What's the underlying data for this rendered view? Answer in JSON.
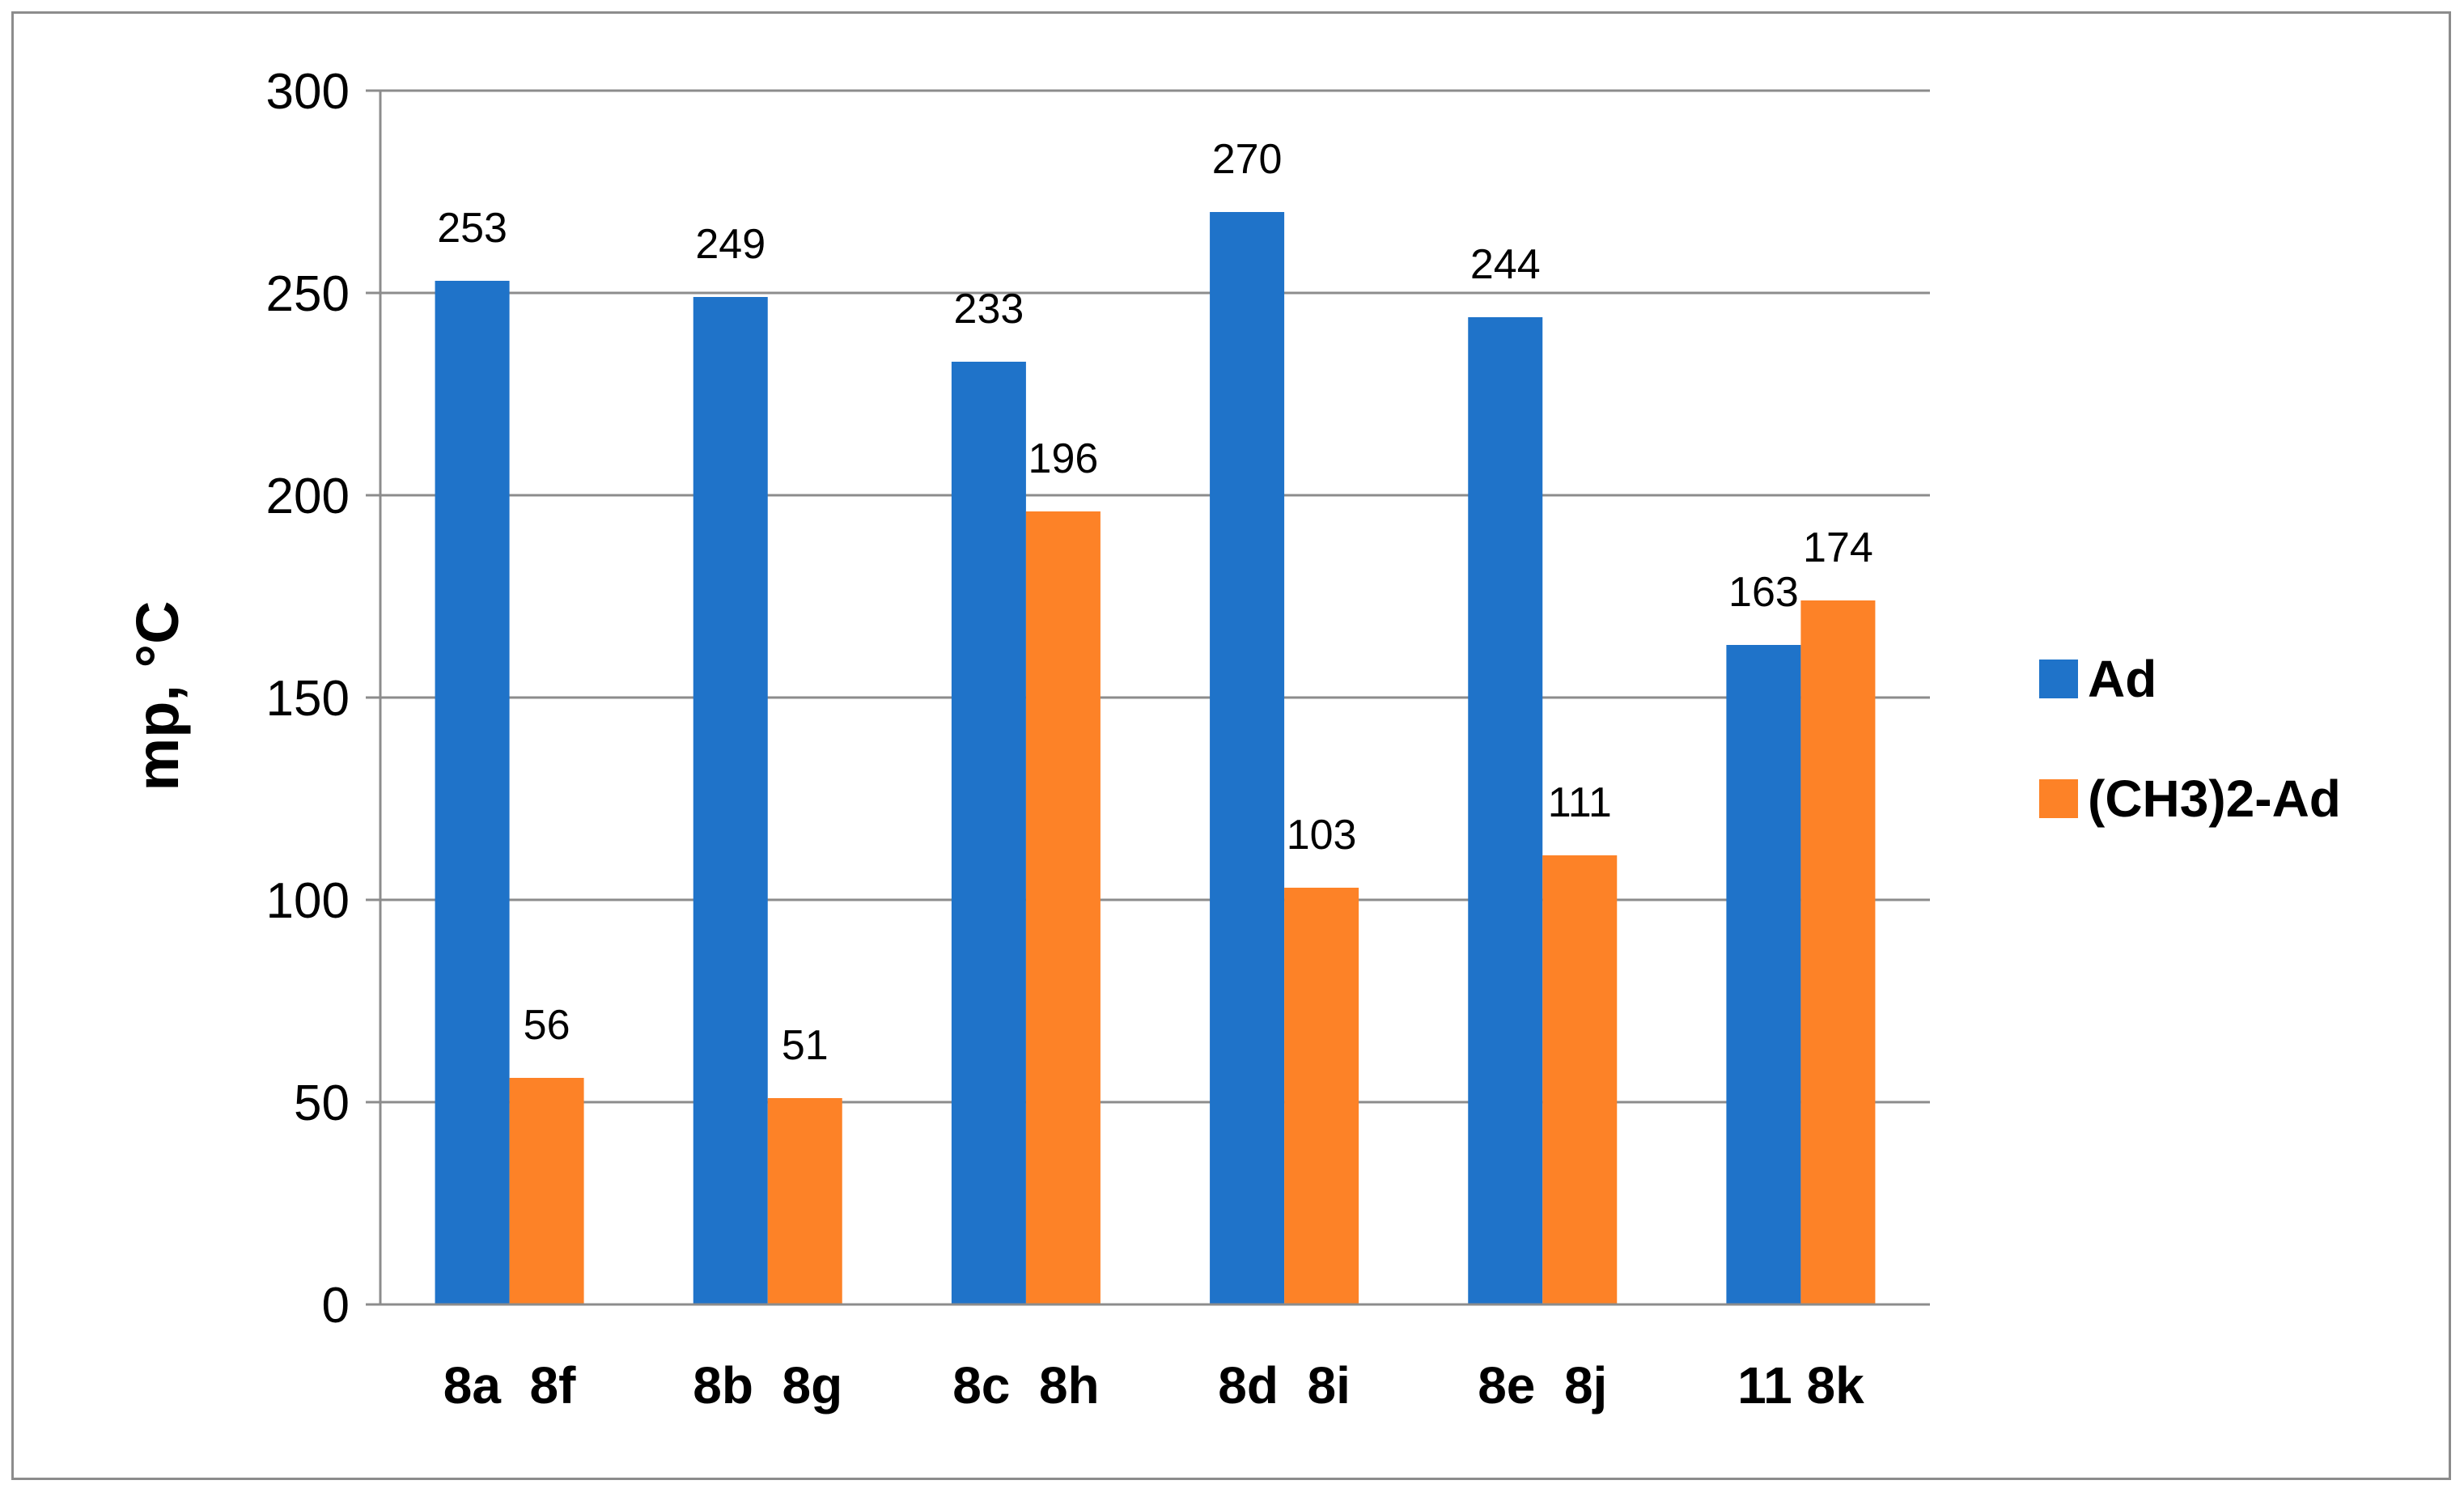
{
  "chart_data": {
    "type": "bar",
    "title": "",
    "xlabel": "",
    "ylabel": "mp, °C",
    "ylim": [
      0,
      300
    ],
    "yticks": [
      0,
      50,
      100,
      150,
      200,
      250,
      300
    ],
    "grid": true,
    "legend_position": "right",
    "categories": [
      "8a  8f",
      "8b  8g",
      "8c  8h",
      "8d  8i",
      "8e  8j",
      "11 8k"
    ],
    "series": [
      {
        "name": "Ad",
        "color": "#1f73c9",
        "values": [
          253,
          249,
          233,
          270,
          244,
          163
        ]
      },
      {
        "name": "(CH3)2-Ad",
        "color": "#fd8227",
        "values": [
          56,
          51,
          196,
          103,
          111,
          174
        ]
      }
    ],
    "data_labels": true
  }
}
